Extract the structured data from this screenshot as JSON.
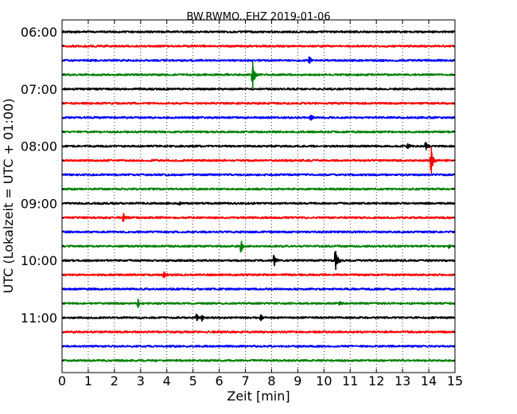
{
  "chart_data": {
    "type": "line",
    "title": "BW.RWMO..EHZ 2019-01-06",
    "xlabel": "Zeit  [min]",
    "ylabel": "UTC (Lokalzeit = UTC + 01:00)",
    "xlim": [
      0,
      15
    ],
    "x_ticks": [
      "0",
      "1",
      "2",
      "3",
      "4",
      "5",
      "6",
      "7",
      "8",
      "9",
      "10",
      "11",
      "12",
      "13",
      "14",
      "15"
    ],
    "y_ticks": [
      "06:00",
      "07:00",
      "08:00",
      "09:00",
      "10:00",
      "11:00"
    ],
    "grid_x": "dotted vertical at each minute",
    "trace_interval_min": 15,
    "colors": [
      "#000000",
      "#ff0000",
      "#0000ff",
      "#008000"
    ],
    "traces": [
      {
        "start": "06:00",
        "events": []
      },
      {
        "start": "06:15",
        "events": []
      },
      {
        "start": "06:30",
        "events": [
          {
            "t": 9.45,
            "amp": 0.25
          }
        ]
      },
      {
        "start": "06:45",
        "events": [
          {
            "t": 7.28,
            "amp": 1.0
          }
        ]
      },
      {
        "start": "07:00",
        "events": []
      },
      {
        "start": "07:15",
        "events": []
      },
      {
        "start": "07:30",
        "events": [
          {
            "t": 9.5,
            "amp": 0.2
          }
        ]
      },
      {
        "start": "07:45",
        "events": []
      },
      {
        "start": "08:00",
        "events": [
          {
            "t": 13.2,
            "amp": 0.2
          },
          {
            "t": 13.9,
            "amp": 0.3
          }
        ]
      },
      {
        "start": "08:15",
        "events": [
          {
            "t": 14.1,
            "amp": 1.0
          }
        ]
      },
      {
        "start": "08:30",
        "events": []
      },
      {
        "start": "08:45",
        "events": []
      },
      {
        "start": "09:00",
        "events": [
          {
            "t": 4.5,
            "amp": 0.15
          }
        ]
      },
      {
        "start": "09:15",
        "events": [
          {
            "t": 2.35,
            "amp": 0.3
          }
        ]
      },
      {
        "start": "09:30",
        "events": []
      },
      {
        "start": "09:45",
        "events": [
          {
            "t": 6.85,
            "amp": 0.4
          },
          {
            "t": 14.8,
            "amp": 0.15
          }
        ]
      },
      {
        "start": "10:00",
        "events": [
          {
            "t": 8.1,
            "amp": 0.35
          },
          {
            "t": 10.45,
            "amp": 0.7
          }
        ]
      },
      {
        "start": "10:15",
        "events": [
          {
            "t": 3.9,
            "amp": 0.25
          }
        ]
      },
      {
        "start": "10:30",
        "events": []
      },
      {
        "start": "10:45",
        "events": [
          {
            "t": 2.9,
            "amp": 0.35
          },
          {
            "t": 10.6,
            "amp": 0.15
          }
        ]
      },
      {
        "start": "11:00",
        "events": [
          {
            "t": 5.15,
            "amp": 0.25
          },
          {
            "t": 5.35,
            "amp": 0.2
          },
          {
            "t": 7.6,
            "amp": 0.25
          }
        ]
      },
      {
        "start": "11:15",
        "events": []
      },
      {
        "start": "11:30",
        "events": []
      },
      {
        "start": "11:45",
        "events": []
      }
    ]
  }
}
